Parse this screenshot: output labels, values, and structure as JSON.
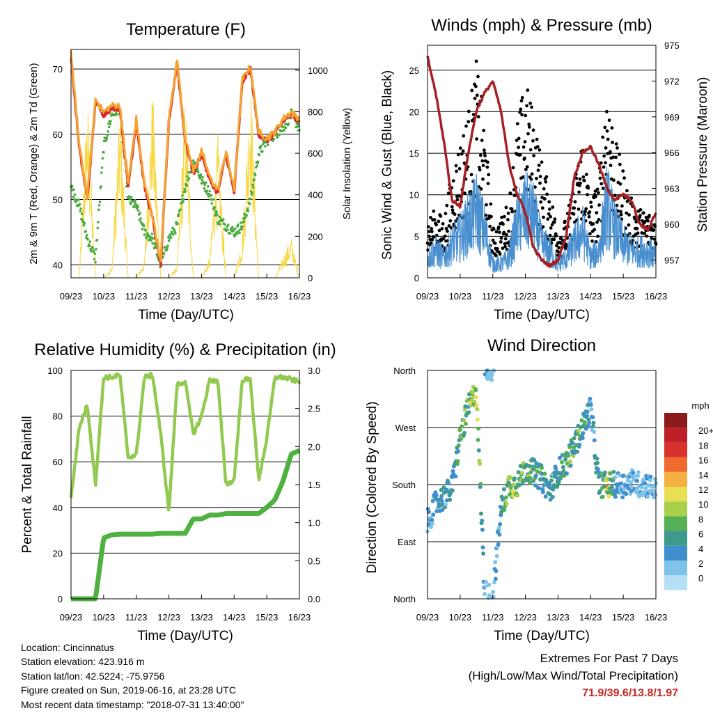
{
  "time_ticks": [
    "09/23",
    "10/23",
    "11/23",
    "12/23",
    "13/23",
    "14/23",
    "15/23",
    "16/23"
  ],
  "panels": {
    "temperature": {
      "title": "Temperature (F)",
      "xlabel": "Time (Day/UTC)",
      "ylabel_left": "2m & 9m T (Red, Orange) & 2m Td (Green)",
      "ylabel_right": "Solar Insolation (Yellow)",
      "left_ticks": [
        "40",
        "50",
        "60",
        "70"
      ],
      "right_ticks": [
        "0",
        "200",
        "400",
        "600",
        "800",
        "1000"
      ]
    },
    "winds": {
      "title": "Winds (mph) & Pressure (mb)",
      "xlabel": "Time (Day/UTC)",
      "ylabel_left": "Sonic Wind & Gust (Blue, Black)",
      "ylabel_right": "Station Pressure (Maroon)",
      "left_ticks": [
        "0",
        "5",
        "10",
        "15",
        "20",
        "25"
      ],
      "right_ticks": [
        "957",
        "960",
        "963",
        "966",
        "969",
        "972",
        "975"
      ]
    },
    "humidity": {
      "title": "Relative Humidity (%) & Precipitation (in)",
      "xlabel": "Time (Day/UTC)",
      "ylabel_left": "Percent & Total Rainfall",
      "left_ticks": [
        "0",
        "20",
        "40",
        "60",
        "80",
        "100"
      ],
      "right_ticks": [
        "0.0",
        "0.5",
        "1.0",
        "1.5",
        "2.0",
        "2.5",
        "3.0"
      ]
    },
    "direction": {
      "title": "Wind Direction",
      "xlabel": "Time (Day/UTC)",
      "ylabel_left": "Direction (Colored By Speed)",
      "dir_ticks": [
        "North",
        "East",
        "South",
        "West",
        "North"
      ],
      "legend_title": "mph",
      "legend_labels": [
        "0",
        "2",
        "4",
        "6",
        "8",
        "10",
        "12",
        "14",
        "16",
        "18",
        "20+"
      ],
      "legend_colors": [
        "#b3e0f5",
        "#7fc2ea",
        "#3f8fcf",
        "#3d9a8c",
        "#55b055",
        "#aacf4b",
        "#e8e052",
        "#f5b042",
        "#ef6a2d",
        "#d9322c",
        "#bd2127",
        "#8b1a1a"
      ]
    }
  },
  "colors": {
    "temp_red": "#d92b2b",
    "temp_orange": "#f5a431",
    "dewpoint_green": "#4aab3e",
    "solar_yellow": "#f7d845",
    "wind_blue": "#4a90d0",
    "gust_black": "#000000",
    "pressure_maroon": "#a52024",
    "rh_lightgreen": "#92c94f",
    "rain_green": "#4fb240"
  },
  "info": {
    "location": "Location: Cincinnatus",
    "elevation": "Station elevation: 423.916 m",
    "latlon": "Station lat/lon: 42.5224; -75.9756",
    "created": "Figure created on Sun, 2019-06-16, at 23:28 UTC",
    "recent": "Most recent data timestamp: \"2018-07-31 13:40:00\""
  },
  "extremes": {
    "title": "Extremes For Past 7 Days",
    "subtitle": "(High/Low/Max Wind/Total Precipitation)",
    "values": "71.9/39.6/13.8/1.97"
  },
  "chart_data": [
    {
      "type": "line",
      "title": "Temperature (F)",
      "xlabel": "Time (Day/UTC)",
      "ylabel": "2m & 9m T (Red, Orange) & 2m Td (Green)",
      "ylabel_right": "Solar Insolation (Yellow)",
      "x_days": [
        0,
        0.25,
        0.5,
        0.75,
        1,
        1.25,
        1.5,
        1.75,
        2,
        2.25,
        2.5,
        2.75,
        3,
        3.25,
        3.5,
        3.75,
        4,
        4.25,
        4.5,
        4.75,
        5,
        5.25,
        5.5,
        5.75,
        6,
        6.25,
        6.5,
        6.75,
        7
      ],
      "ylim": [
        38,
        73
      ],
      "ylim_right": [
        0,
        1100
      ],
      "series": [
        {
          "name": "2m T",
          "values": [
            72,
            58,
            50,
            65,
            63,
            64,
            64,
            52,
            62,
            52,
            47,
            40,
            62,
            71,
            59,
            54,
            57,
            53,
            51,
            57,
            51,
            68,
            70,
            60,
            59,
            60,
            62,
            63,
            62
          ]
        },
        {
          "name": "2m Td",
          "values": [
            52,
            49,
            44,
            41,
            58,
            63,
            64,
            50,
            49,
            45,
            44,
            40,
            44,
            46,
            52,
            56,
            53,
            51,
            47,
            46,
            45,
            46,
            50,
            57,
            59,
            60,
            61,
            63,
            61
          ]
        },
        {
          "name": "Solar Insolation",
          "values": [
            0,
            0,
            900,
            0,
            0,
            50,
            850,
            0,
            0,
            80,
            950,
            0,
            0,
            60,
            900,
            0,
            0,
            100,
            700,
            0,
            0,
            200,
            1000,
            0,
            0,
            0,
            100,
            200,
            0
          ]
        }
      ]
    },
    {
      "type": "line",
      "title": "Winds (mph) & Pressure (mb)",
      "xlabel": "Time (Day/UTC)",
      "ylabel": "Sonic Wind & Gust (Blue, Black)",
      "ylabel_right": "Station Pressure (Maroon)",
      "x_days": [
        0,
        0.25,
        0.5,
        0.75,
        1,
        1.25,
        1.5,
        1.75,
        2,
        2.25,
        2.5,
        2.75,
        3,
        3.25,
        3.5,
        3.75,
        4,
        4.25,
        4.5,
        4.75,
        5,
        5.25,
        5.5,
        5.75,
        6,
        6.25,
        6.5,
        6.75,
        7
      ],
      "ylim": [
        0,
        28
      ],
      "ylim_right": [
        955.5,
        975
      ],
      "series": [
        {
          "name": "Sonic Wind",
          "values": [
            3,
            4,
            3,
            5,
            6,
            8,
            10,
            7,
            2,
            2,
            3,
            8,
            10,
            9,
            5,
            4,
            2,
            3,
            5,
            7,
            3,
            4,
            11,
            7,
            5,
            4,
            4,
            4,
            3
          ]
        },
        {
          "name": "Gust",
          "values": [
            6,
            7,
            6,
            11,
            14,
            17,
            22,
            16,
            5,
            6,
            8,
            16,
            20,
            17,
            12,
            9,
            5,
            6,
            10,
            15,
            8,
            10,
            21,
            14,
            11,
            8,
            7,
            7,
            6
          ]
        },
        {
          "name": "Station Pressure",
          "values": [
            974,
            971,
            967,
            962,
            961.5,
            966,
            969.5,
            971,
            972,
            969.5,
            965,
            962.5,
            961,
            958,
            957,
            956.5,
            957,
            959,
            964,
            966,
            966.5,
            965,
            963,
            962,
            962.5,
            962,
            960,
            959.5,
            961
          ]
        }
      ]
    },
    {
      "type": "line",
      "title": "Relative Humidity (%) & Precipitation (in)",
      "xlabel": "Time (Day/UTC)",
      "ylabel": "Percent & Total Rainfall",
      "x_days": [
        0,
        0.25,
        0.5,
        0.75,
        1,
        1.25,
        1.5,
        1.75,
        2,
        2.25,
        2.5,
        2.75,
        3,
        3.25,
        3.5,
        3.75,
        4,
        4.25,
        4.5,
        4.75,
        5,
        5.25,
        5.5,
        5.75,
        6,
        6.25,
        6.5,
        6.75,
        7
      ],
      "ylim": [
        0,
        100
      ],
      "ylim_right": [
        0,
        3.0
      ],
      "series": [
        {
          "name": "Relative Humidity",
          "values": [
            44,
            75,
            85,
            50,
            97,
            97,
            98,
            62,
            63,
            97,
            98,
            72,
            38,
            94,
            95,
            72,
            80,
            96,
            95,
            50,
            52,
            96,
            96,
            52,
            70,
            97,
            97,
            96,
            95
          ]
        },
        {
          "name": "Total Rainfall",
          "values": [
            0,
            0,
            0,
            0,
            0.8,
            0.84,
            0.85,
            0.85,
            0.85,
            0.85,
            0.85,
            0.86,
            0.86,
            0.86,
            0.86,
            1.05,
            1.05,
            1.1,
            1.1,
            1.12,
            1.12,
            1.12,
            1.12,
            1.12,
            1.2,
            1.3,
            1.55,
            1.9,
            1.95
          ]
        }
      ]
    },
    {
      "type": "scatter",
      "title": "Wind Direction",
      "xlabel": "Time (Day/UTC)",
      "ylabel": "Direction (Colored By Speed)",
      "x_days": [
        0,
        0.25,
        0.5,
        0.75,
        1,
        1.25,
        1.5,
        1.75,
        2,
        2.25,
        2.5,
        2.75,
        3,
        3.25,
        3.5,
        3.75,
        4,
        4.25,
        4.5,
        4.75,
        5,
        5.25,
        5.5,
        5.75,
        6,
        6.25,
        6.5,
        6.75,
        7
      ],
      "direction_deg": [
        120,
        150,
        160,
        175,
        255,
        300,
        330,
        10,
        0,
        140,
        180,
        180,
        205,
        200,
        190,
        170,
        200,
        215,
        240,
        270,
        300,
        180,
        180,
        180,
        180,
        185,
        180,
        180,
        170
      ],
      "speed_mph": [
        3,
        4,
        5,
        5,
        8,
        9,
        10,
        3,
        2,
        6,
        10,
        9,
        8,
        7,
        6,
        5,
        6,
        7,
        8,
        7,
        4,
        6,
        12,
        5,
        4,
        3,
        3,
        3,
        2
      ]
    }
  ]
}
